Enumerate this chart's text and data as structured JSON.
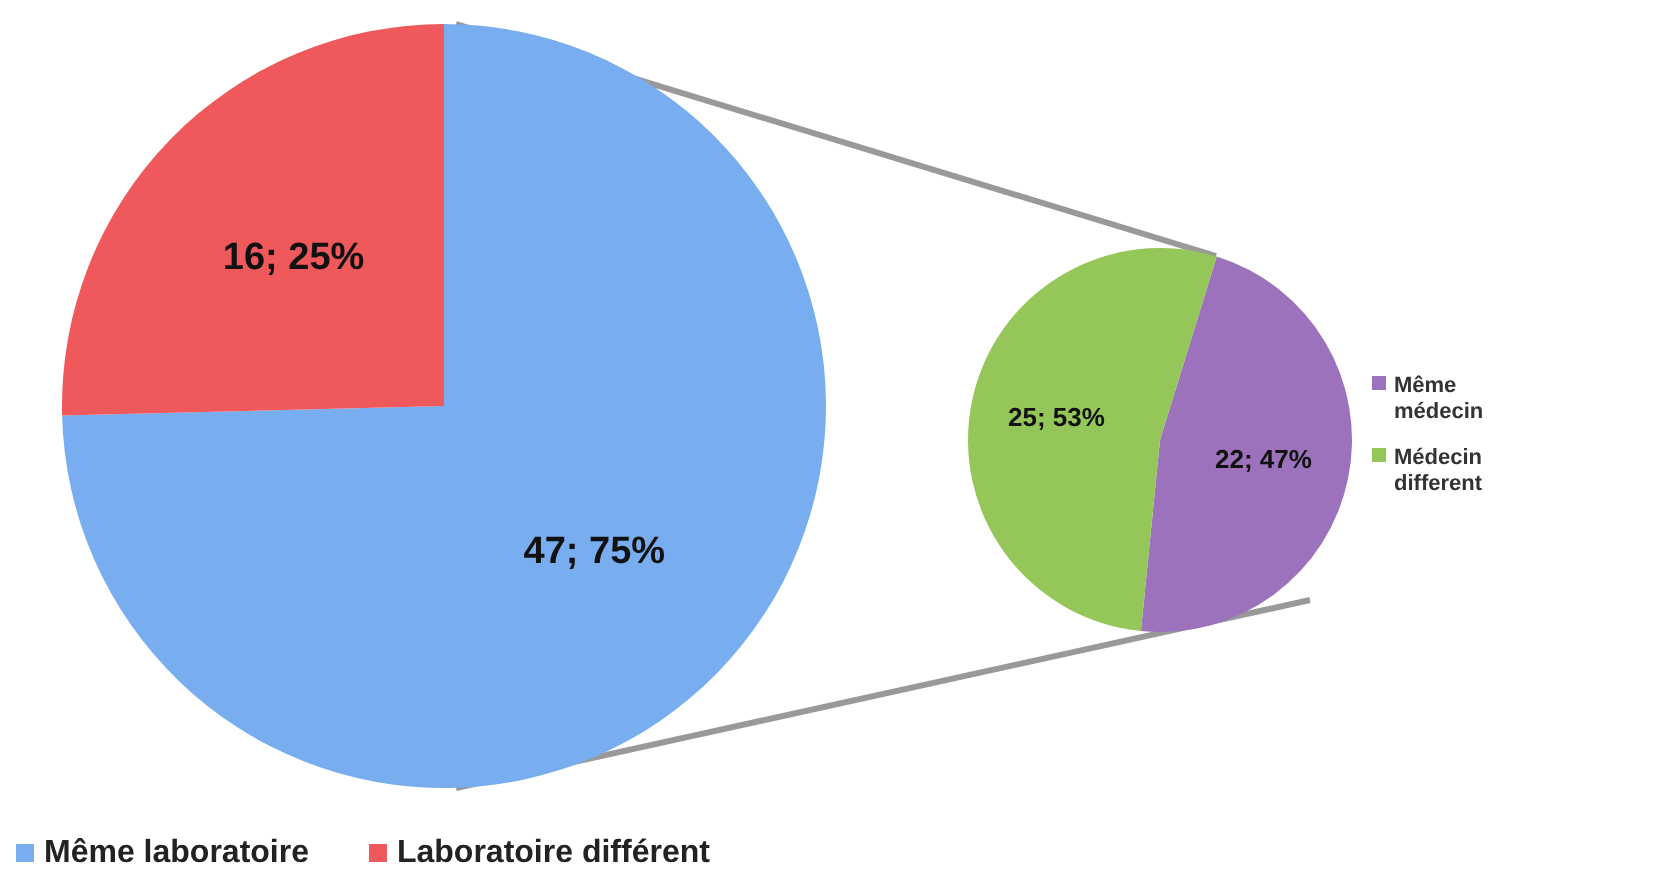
{
  "chart_data": [
    {
      "type": "pie",
      "categories": [
        "Même laboratoire",
        "Laboratoire différent"
      ],
      "values": [
        47,
        16
      ],
      "colors": [
        "#78aef0",
        "#f0595c"
      ],
      "value_labels": [
        "47; 75%",
        "16; 25%"
      ],
      "legend": "bottom"
    },
    {
      "type": "pie",
      "categories": [
        "Même médecin",
        "Médecin different"
      ],
      "values": [
        22,
        25
      ],
      "colors": [
        "#9b72bb",
        "#94c65a"
      ],
      "value_labels": [
        "22; 47%",
        "25; 53%"
      ],
      "legend": "right"
    }
  ]
}
